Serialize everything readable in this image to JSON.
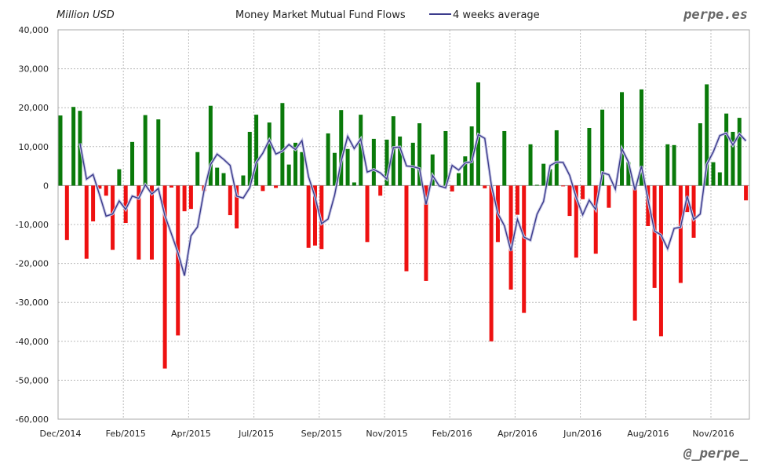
{
  "chart_data": {
    "type": "bar",
    "title": "Money Market Mutual Fund Flows",
    "ylabel": "Million USD",
    "ylim": [
      -60000,
      40000
    ],
    "yticks": [
      "40,000",
      "30,000",
      "20,000",
      "10,000",
      "0",
      "-10,000",
      "-20,000",
      "-30,000",
      "-40,000",
      "-50,000",
      "-60,000"
    ],
    "xticks": [
      "Dec/2014",
      "Feb/2015",
      "Apr/2015",
      "Jul/2015",
      "Sep/2015",
      "Nov/2015",
      "Feb/2016",
      "Apr/2016",
      "Jun/2016",
      "Aug/2016",
      "Nov/2016"
    ],
    "grid": true,
    "frequency": "weekly",
    "legend": {
      "position": "top-center",
      "entries": [
        "4 weeks average"
      ]
    },
    "colors": {
      "positive": "#0a7a0a",
      "negative": "#ee1111",
      "average": "#3c3c8c"
    },
    "values": [
      18000,
      -14000,
      20200,
      19200,
      -18800,
      -9200,
      -800,
      -2600,
      -16500,
      4200,
      -9600,
      11200,
      -19000,
      18100,
      -19000,
      17000,
      -47000,
      -500,
      -38500,
      -6600,
      -6000,
      8600,
      -1400,
      20500,
      4600,
      3200,
      -7600,
      -11000,
      2600,
      13800,
      18200,
      -1400,
      16200,
      -600,
      21200,
      5400,
      11000,
      8600,
      -16000,
      -15400,
      -16300,
      13400,
      8400,
      19400,
      9400,
      800,
      18200,
      -14500,
      12000,
      -2600,
      11800,
      17800,
      12600,
      -22000,
      11000,
      16000,
      -24500,
      8000,
      200,
      14000,
      -1500,
      3200,
      7500,
      15200,
      26500,
      -700,
      -40000,
      -14500,
      14000,
      -26700,
      -7500,
      -32700,
      10600,
      200,
      5600,
      4200,
      14200,
      -200,
      -7800,
      -18500,
      -3500,
      14800,
      -17500,
      19500,
      -5700,
      0,
      24000,
      6000,
      -34700,
      24700,
      -10400,
      -26300,
      -38700,
      10600,
      10400,
      -25000,
      -6800,
      -13400,
      16000,
      26000,
      6000,
      3400,
      18500,
      13800,
      17400,
      -3800
    ],
    "series": [
      {
        "name": "4 weeks average",
        "type": "line",
        "start_week": 4,
        "values": [
          10850,
          1650,
          2850,
          -2400,
          -7850,
          -7275,
          -3925,
          -6125,
          -2675,
          -3300,
          175,
          -2175,
          -725,
          -7725,
          -12375,
          -17250,
          -23150,
          -12900,
          -10625,
          -1350,
          5425,
          8075,
          6725,
          5175,
          -2700,
          -3200,
          -550,
          5900,
          8300,
          11700,
          8100,
          8850,
          10550,
          9250,
          11550,
          2250,
          -2950,
          -9775,
          -8575,
          -2475,
          6225,
          12650,
          9500,
          11950,
          3475,
          4125,
          3275,
          1675,
          9750,
          9900,
          5050,
          4850,
          4400,
          -4875,
          2625,
          -75,
          -575,
          5175,
          3975,
          5800,
          6100,
          13100,
          12125,
          250,
          -7175,
          -10300,
          -16800,
          -8675,
          -13225,
          -14075,
          -7350,
          -4075,
          5150,
          6050,
          5950,
          2600,
          -3075,
          -7500,
          -3750,
          -6175,
          3325,
          2775,
          -925,
          9450,
          6075,
          -1175,
          5000,
          -3600,
          -11675,
          -12675,
          -16200,
          -11000,
          -10675,
          -2700,
          -8700,
          -7300,
          5450,
          8650,
          12850,
          13475,
          10425,
          13275,
          11475
        ]
      }
    ]
  },
  "branding": {
    "site": "perpe.es",
    "handle": "@_perpe_"
  }
}
